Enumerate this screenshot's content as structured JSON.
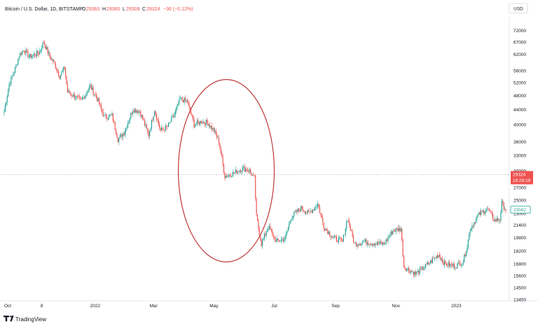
{
  "header": {
    "symbol": "Bitcoin / U.S. Dollar, 1D, BITSTAMP",
    "o_label": "O",
    "o_value": "29360",
    "h_label": "H",
    "h_value": "29360",
    "l_label": "L",
    "l_value": "29308",
    "c_label": "C",
    "c_value": "29324",
    "change": "−36 (−0.12%)"
  },
  "currency": "USD",
  "brand": "TradingView",
  "price_badge": {
    "price": "29324",
    "countdown": "19:29:19",
    "color": "#ef5350"
  },
  "ref_badge": {
    "price": "23562",
    "color": "#26a69a"
  },
  "colors": {
    "up": "#26a69a",
    "down": "#ef5350",
    "annotation": "#c0393b"
  },
  "chart_data": {
    "type": "candlestick",
    "y_scale": "log",
    "ylim": [
      13450,
      77000
    ],
    "y_ticks": [
      "72000",
      "67000",
      "62000",
      "56000",
      "52000",
      "48000",
      "44000",
      "40000",
      "36000",
      "33000",
      "30000",
      "27000",
      "25000",
      "23000",
      "21400",
      "19800",
      "18200",
      "16800",
      "15600",
      "14500",
      "13450"
    ],
    "x_ticks": [
      {
        "label": "Oct",
        "date": "2021-10-01"
      },
      {
        "label": "8",
        "date": "2021-11-08"
      },
      {
        "label": "2022",
        "date": "2022-01-01"
      },
      {
        "label": "Mar",
        "date": "2022-03-01"
      },
      {
        "label": "May",
        "date": "2022-05-01"
      },
      {
        "label": "Jul",
        "date": "2022-07-01"
      },
      {
        "label": "Sep",
        "date": "2022-09-01"
      },
      {
        "label": "Nov",
        "date": "2022-11-01"
      },
      {
        "label": "2023",
        "date": "2023-01-01"
      }
    ],
    "xlim": [
      "2021-10-01",
      "2023-02-20"
    ],
    "close_path": [
      [
        "2021-10-01",
        43500
      ],
      [
        "2021-10-06",
        51500
      ],
      [
        "2021-10-12",
        56500
      ],
      [
        "2021-10-16",
        61500
      ],
      [
        "2021-10-21",
        64000
      ],
      [
        "2021-10-26",
        61000
      ],
      [
        "2021-11-01",
        62000
      ],
      [
        "2021-11-05",
        62500
      ],
      [
        "2021-11-10",
        67000
      ],
      [
        "2021-11-16",
        61000
      ],
      [
        "2021-11-21",
        58500
      ],
      [
        "2021-11-26",
        54000
      ],
      [
        "2021-12-01",
        57000
      ],
      [
        "2021-12-04",
        49000
      ],
      [
        "2021-12-10",
        48000
      ],
      [
        "2021-12-18",
        46500
      ],
      [
        "2021-12-27",
        50800
      ],
      [
        "2022-01-03",
        47000
      ],
      [
        "2022-01-10",
        42000
      ],
      [
        "2022-01-18",
        42300
      ],
      [
        "2022-01-24",
        36500
      ],
      [
        "2022-01-30",
        38000
      ],
      [
        "2022-02-08",
        44000
      ],
      [
        "2022-02-15",
        43500
      ],
      [
        "2022-02-24",
        37500
      ],
      [
        "2022-03-02",
        44000
      ],
      [
        "2022-03-08",
        38500
      ],
      [
        "2022-03-15",
        39500
      ],
      [
        "2022-03-22",
        42500
      ],
      [
        "2022-03-28",
        47000
      ],
      [
        "2022-04-04",
        46200
      ],
      [
        "2022-04-11",
        40000
      ],
      [
        "2022-04-18",
        40800
      ],
      [
        "2022-04-25",
        40400
      ],
      [
        "2022-05-01",
        38500
      ],
      [
        "2022-05-06",
        36000
      ],
      [
        "2022-05-12",
        29000
      ],
      [
        "2022-05-20",
        29500
      ],
      [
        "2022-05-30",
        30500
      ],
      [
        "2022-06-06",
        30000
      ],
      [
        "2022-06-11",
        28500
      ],
      [
        "2022-06-13",
        22500
      ],
      [
        "2022-06-18",
        19000
      ],
      [
        "2022-06-25",
        21200
      ],
      [
        "2022-07-03",
        19300
      ],
      [
        "2022-07-12",
        19700
      ],
      [
        "2022-07-18",
        22500
      ],
      [
        "2022-07-28",
        23800
      ],
      [
        "2022-08-05",
        23000
      ],
      [
        "2022-08-14",
        24400
      ],
      [
        "2022-08-20",
        21200
      ],
      [
        "2022-08-29",
        19800
      ],
      [
        "2022-09-08",
        19300
      ],
      [
        "2022-09-13",
        22300
      ],
      [
        "2022-09-20",
        19000
      ],
      [
        "2022-09-30",
        19300
      ],
      [
        "2022-10-10",
        19100
      ],
      [
        "2022-10-20",
        19000
      ],
      [
        "2022-10-29",
        20700
      ],
      [
        "2022-11-06",
        20900
      ],
      [
        "2022-11-09",
        16500
      ],
      [
        "2022-11-12",
        16300
      ],
      [
        "2022-11-21",
        15800
      ],
      [
        "2022-11-28",
        16300
      ],
      [
        "2022-12-06",
        17000
      ],
      [
        "2022-12-14",
        17800
      ],
      [
        "2022-12-20",
        16800
      ],
      [
        "2022-12-31",
        16550
      ],
      [
        "2023-01-08",
        17100
      ],
      [
        "2023-01-12",
        18800
      ],
      [
        "2023-01-15",
        20900
      ],
      [
        "2023-01-23",
        22700
      ],
      [
        "2023-02-01",
        23700
      ],
      [
        "2023-02-09",
        22000
      ],
      [
        "2023-02-14",
        22200
      ],
      [
        "2023-02-16",
        24500
      ],
      [
        "2023-02-20",
        23562
      ]
    ],
    "annotation": {
      "shape": "ellipse",
      "from": "2022-03-26",
      "to": "2022-07-01",
      "y_range": [
        17000,
        53000
      ]
    },
    "current_price": 29324,
    "ref_price": 23562
  }
}
